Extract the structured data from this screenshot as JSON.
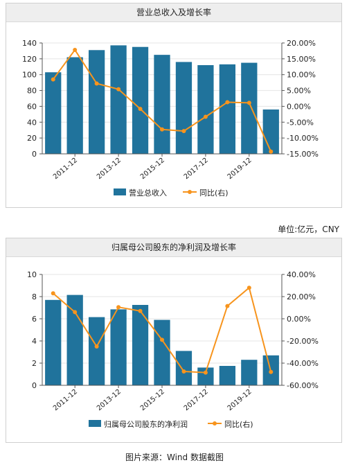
{
  "colors": {
    "bar": "#20739c",
    "line": "#f7941d"
  },
  "units_label": "单位:亿元，CNY",
  "caption": "图片来源：Wind 数据截图",
  "chart_data": [
    {
      "type": "bar",
      "title": "营业总收入及增长率",
      "categories": [
        "2010-12",
        "2011-12",
        "2012-12",
        "2013-12",
        "2014-12",
        "2015-12",
        "2016-12",
        "2017-12",
        "2018-12",
        "2019-12",
        "2020-12"
      ],
      "tick_labels": [
        "2011-12",
        "2013-12",
        "2015-12",
        "2017-12",
        "2019-12"
      ],
      "series": [
        {
          "name": "营业总收入",
          "type": "bar",
          "axis": "left",
          "values": [
            103,
            122,
            131,
            137,
            135,
            125,
            116,
            112,
            113,
            115,
            56
          ]
        },
        {
          "name": "同比(右)",
          "type": "line",
          "axis": "right",
          "values": [
            8.5,
            17.8,
            7.2,
            5.4,
            -0.8,
            -7.3,
            -7.8,
            -3.3,
            1.3,
            1.1,
            -14.3
          ]
        }
      ],
      "ylim_left": [
        0,
        140
      ],
      "left_ticks": [
        "0",
        "20",
        "40",
        "60",
        "80",
        "100",
        "120",
        "140"
      ],
      "ylim_right": [
        -15,
        20
      ],
      "right_ticks": [
        "-15.00%",
        "-10.00%",
        "-5.00%",
        "0.00%",
        "5.00%",
        "10.00%",
        "15.00%",
        "20.00%"
      ],
      "grid": true,
      "legend": "bottom"
    },
    {
      "type": "bar",
      "title": "归属母公司股东的净利润及增长率",
      "categories": [
        "2010-12",
        "2011-12",
        "2012-12",
        "2013-12",
        "2014-12",
        "2015-12",
        "2016-12",
        "2017-12",
        "2018-12",
        "2019-12",
        "2020-12"
      ],
      "tick_labels": [
        "2011-12",
        "2013-12",
        "2015-12",
        "2017-12",
        "2019-12"
      ],
      "series": [
        {
          "name": "归属母公司股东的净利润",
          "type": "bar",
          "axis": "left",
          "values": [
            7.7,
            8.15,
            6.15,
            6.85,
            7.25,
            5.9,
            3.1,
            1.6,
            1.75,
            2.3,
            2.7
          ]
        },
        {
          "name": "同比(右)",
          "type": "line",
          "axis": "right",
          "values": [
            23,
            6,
            -25,
            10.5,
            7,
            -19,
            -47.5,
            -48.5,
            11.5,
            28,
            -48
          ]
        }
      ],
      "ylim_left": [
        0,
        10
      ],
      "left_ticks": [
        "0",
        "2",
        "4",
        "6",
        "8",
        "10"
      ],
      "ylim_right": [
        -60,
        40
      ],
      "right_ticks": [
        "-60.00%",
        "-40.00%",
        "-20.00%",
        "0.00%",
        "20.00%",
        "40.00%"
      ],
      "grid": true,
      "legend": "bottom"
    }
  ]
}
